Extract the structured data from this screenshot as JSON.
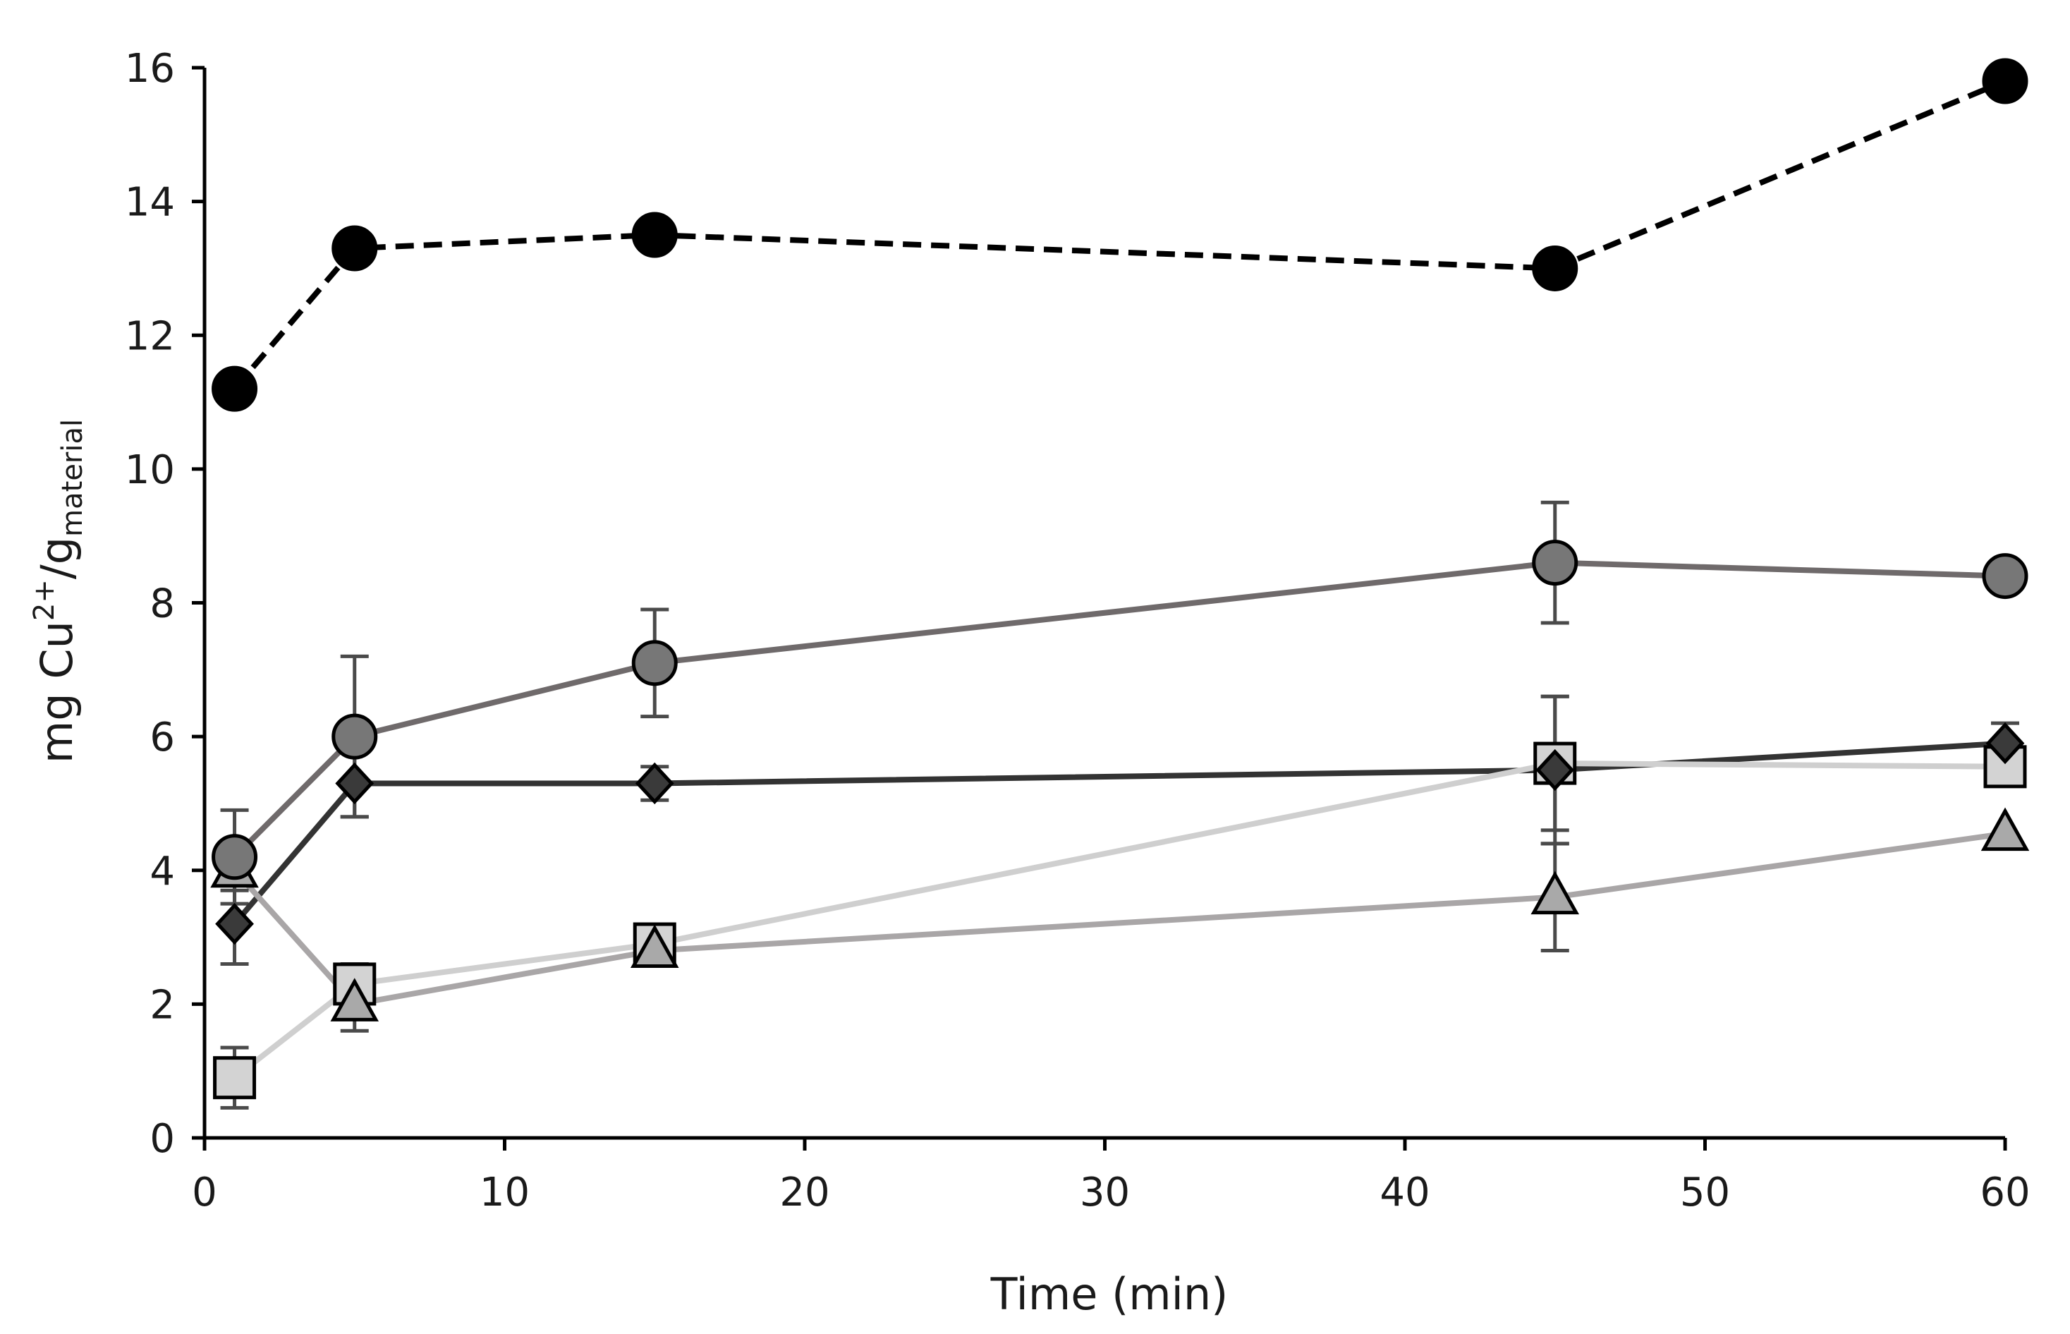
{
  "chart_data": {
    "type": "line",
    "title": "",
    "xlabel": "Time (min)",
    "ylabel": {
      "main": "mg Cu",
      "superscript": "2+",
      "slash_g": "/g",
      "subscript": "material"
    },
    "xlim": [
      0,
      60
    ],
    "ylim": [
      0,
      16
    ],
    "xticks": [
      "0",
      "10",
      "20",
      "30",
      "40",
      "50",
      "60"
    ],
    "yticks": [
      "0",
      "2",
      "4",
      "6",
      "8",
      "10",
      "12",
      "14",
      "16"
    ],
    "grid": false,
    "legend": "none",
    "x": [
      1,
      5,
      15,
      45,
      60
    ],
    "series": [
      {
        "name": "black-circles-dashed",
        "marker": "circle",
        "line_style": "dashed",
        "line_color": "#000000",
        "marker_fill": "#000000",
        "values": [
          11.2,
          13.3,
          13.5,
          13.0,
          15.8
        ],
        "errors": [
          0,
          0,
          0,
          0,
          0
        ]
      },
      {
        "name": "dark-gray-circles",
        "marker": "circle",
        "line_style": "solid",
        "line_color": "#6f6a6b",
        "marker_fill": "#777777",
        "values": [
          4.2,
          6.0,
          7.1,
          8.6,
          8.4
        ],
        "errors": [
          0.7,
          1.2,
          0.8,
          0.9,
          0
        ]
      },
      {
        "name": "dark-diamonds",
        "marker": "diamond",
        "line_style": "solid",
        "line_color": "#333333",
        "marker_fill": "#3a3a3a",
        "values": [
          3.2,
          5.3,
          5.3,
          5.5,
          5.9
        ],
        "errors": [
          0.6,
          0.5,
          0.25,
          1.1,
          0.3
        ]
      },
      {
        "name": "light-gray-squares",
        "marker": "square",
        "line_style": "solid",
        "line_color": "#cfcfcf",
        "marker_fill": "#d3d3d3",
        "values": [
          0.9,
          2.3,
          2.9,
          5.6,
          5.55
        ],
        "errors": [
          0.45,
          0.3,
          0,
          1.0,
          0
        ]
      },
      {
        "name": "gray-triangles",
        "marker": "triangle",
        "line_style": "solid",
        "line_color": "#a9a6a7",
        "marker_fill": "#a9a9a9",
        "values": [
          4.0,
          2.0,
          2.8,
          3.6,
          4.55
        ],
        "errors": [
          0.3,
          0.4,
          0,
          0.8,
          0
        ]
      }
    ]
  }
}
